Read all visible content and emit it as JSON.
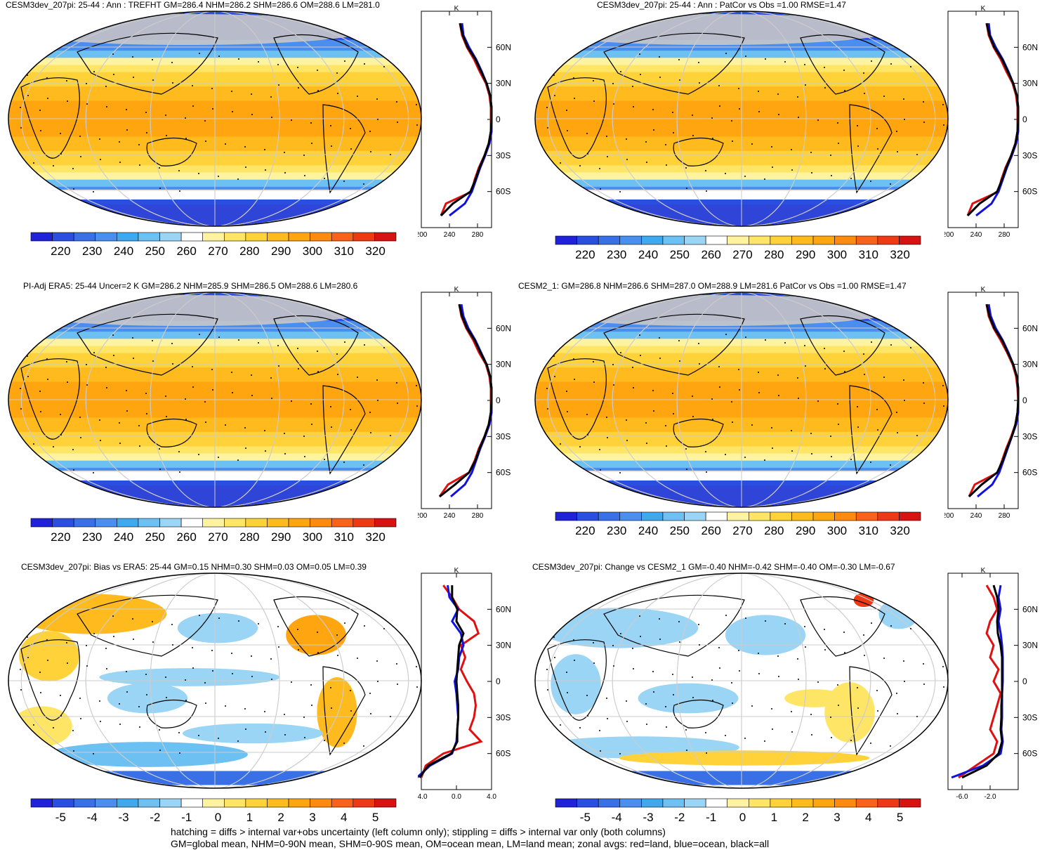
{
  "panels": [
    {
      "title": "CESM3dev_207pi: 25-44 : Ann : TREFHT GM=286.4 NHM=286.2 SHM=286.6 OM=288.6 LM=281.0",
      "field": "abs",
      "zonal_unit": "K",
      "zonal_xticks": [
        "200",
        "240",
        "280"
      ],
      "lat_labels": [
        "60N",
        "30N",
        "0",
        "30S",
        "60S"
      ],
      "colorbar_labels": [
        "220",
        "230",
        "240",
        "250",
        "260",
        "270",
        "280",
        "290",
        "300",
        "310",
        "320"
      ]
    },
    {
      "title": "CESM3dev_207pi: 25-44 : Ann : PatCor vs Obs =1.00 RMSE=1.47",
      "field": "abs",
      "zonal_unit": "K",
      "zonal_xticks": [
        "200",
        "240",
        "280"
      ],
      "lat_labels": [
        "60N",
        "30N",
        "0",
        "30S",
        "60S"
      ],
      "colorbar_labels": [
        "220",
        "230",
        "240",
        "250",
        "260",
        "270",
        "280",
        "290",
        "300",
        "310",
        "320"
      ]
    },
    {
      "title": "PI-Adj ERA5: 25-44 Uncer=2 K GM=286.2 NHM=285.9 SHM=286.5 OM=288.6 LM=280.6",
      "field": "abs",
      "zonal_unit": "K",
      "zonal_xticks": [
        "200",
        "240",
        "280"
      ],
      "lat_labels": [
        "60N",
        "30N",
        "0",
        "30S",
        "60S"
      ],
      "colorbar_labels": [
        "220",
        "230",
        "240",
        "250",
        "260",
        "270",
        "280",
        "290",
        "300",
        "310",
        "320"
      ]
    },
    {
      "title": "CESM2_1: GM=286.8 NHM=286.6 SHM=287.0 OM=288.9 LM=281.6 PatCor vs Obs =1.00 RMSE=1.47",
      "field": "abs",
      "zonal_unit": "K",
      "zonal_xticks": [
        "200",
        "240",
        "280"
      ],
      "lat_labels": [
        "60N",
        "30N",
        "0",
        "30S",
        "60S"
      ],
      "colorbar_labels": [
        "220",
        "230",
        "240",
        "250",
        "260",
        "270",
        "280",
        "290",
        "300",
        "310",
        "320"
      ]
    },
    {
      "title": "CESM3dev_207pi: Bias vs ERA5: 25-44 GM=0.15 NHM=0.30 SHM=0.03 OM=0.05 LM=0.39",
      "field": "diff",
      "zonal_unit": "K",
      "zonal_xticks": [
        "-4.0",
        "0.0",
        "4.0"
      ],
      "lat_labels": [
        "60N",
        "30N",
        "0",
        "30S",
        "60S"
      ],
      "colorbar_labels": [
        "-5",
        "-4",
        "-3",
        "-2",
        "-1",
        "0",
        "1",
        "2",
        "3",
        "4",
        "5"
      ]
    },
    {
      "title": "CESM3dev_207pi: Change vs CESM2_1 GM=-0.40 NHM=-0.42 SHM=-0.40 OM=-0.30 LM=-0.67",
      "field": "diff",
      "zonal_unit": "K",
      "zonal_xticks": [
        "-6.0",
        "-2.0"
      ],
      "lat_labels": [
        "60N",
        "30N",
        "0",
        "30S",
        "60S"
      ],
      "colorbar_labels": [
        "-5",
        "-4",
        "-3",
        "-2",
        "-1",
        "0",
        "1",
        "2",
        "3",
        "4",
        "5"
      ]
    }
  ],
  "colors": {
    "land_line": "#e01010",
    "ocean_line": "#1010e0",
    "all_line": "#000000",
    "colorbar": [
      "#1f22d9",
      "#2a4fe0",
      "#3a70e6",
      "#4a8ff0",
      "#3fa9f0",
      "#6cc0f2",
      "#9ad5f5",
      "#ffffff",
      "#fff3a0",
      "#ffe566",
      "#ffd23a",
      "#ffbb1e",
      "#ffa50f",
      "#ff8a10",
      "#f8621a",
      "#ee3a14",
      "#d61212"
    ]
  },
  "footer": {
    "line1": "hatching = diffs > internal var+obs uncertainty (left column only); stippling = diffs > internal var only (both columns)",
    "line2": "GM=global mean, NHM=0-90N mean, SHM=0-90S mean, OM=ocean mean, LM=land mean; zonal avgs: red=land, blue=ocean, black=all"
  },
  "chart_data": [
    {
      "type": "heatmap",
      "title": "CESM3dev_207pi: 25-44 : Ann : TREFHT GM=286.4 NHM=286.2 SHM=286.6 OM=288.6 LM=281.0",
      "colorbar": [
        220,
        230,
        240,
        250,
        260,
        270,
        280,
        290,
        300,
        310,
        320
      ],
      "zonal_xlim": [
        200,
        300
      ],
      "zonal_ticks": [
        200,
        240,
        280
      ],
      "lat_ticks": [
        "60N",
        "30N",
        "0",
        "30S",
        "60S"
      ],
      "zonal_avg": {
        "lat": [
          80,
          70,
          60,
          50,
          40,
          30,
          20,
          10,
          0,
          -10,
          -20,
          -30,
          -40,
          -50,
          -60,
          -70,
          -80
        ],
        "land": [
          255,
          258,
          265,
          275,
          283,
          292,
          297,
          299,
          299,
          299,
          296,
          290,
          282,
          276,
          272,
          235,
          228
        ],
        "ocean": [
          258,
          260,
          268,
          278,
          286,
          293,
          298,
          300,
          300,
          300,
          297,
          291,
          284,
          278,
          272,
          262,
          240
        ],
        "all": [
          255,
          259,
          266,
          277,
          285,
          293,
          298,
          300,
          300,
          299,
          296,
          290,
          283,
          277,
          270,
          245,
          228
        ]
      }
    },
    {
      "type": "heatmap",
      "title": "CESM3dev_207pi: 25-44 : Ann : PatCor vs Obs =1.00 RMSE=1.47",
      "colorbar": [
        220,
        230,
        240,
        250,
        260,
        270,
        280,
        290,
        300,
        310,
        320
      ],
      "zonal_xlim": [
        200,
        300
      ],
      "zonal_ticks": [
        200,
        240,
        280
      ],
      "lat_ticks": [
        "60N",
        "30N",
        "0",
        "30S",
        "60S"
      ],
      "zonal_avg": {
        "lat": [
          80,
          70,
          60,
          50,
          40,
          30,
          20,
          10,
          0,
          -10,
          -20,
          -30,
          -40,
          -50,
          -60,
          -70,
          -80
        ],
        "land": [
          255,
          258,
          265,
          275,
          283,
          292,
          297,
          299,
          299,
          299,
          296,
          290,
          282,
          276,
          272,
          235,
          228
        ],
        "ocean": [
          258,
          260,
          268,
          278,
          286,
          293,
          298,
          300,
          300,
          300,
          297,
          291,
          284,
          278,
          272,
          262,
          240
        ],
        "all": [
          255,
          259,
          266,
          277,
          285,
          293,
          298,
          300,
          300,
          299,
          296,
          290,
          283,
          277,
          270,
          245,
          228
        ]
      }
    },
    {
      "type": "heatmap",
      "title": "PI-Adj ERA5: 25-44 Uncer=2 K GM=286.2 NHM=285.9 SHM=286.5 OM=288.6 LM=280.6",
      "colorbar": [
        220,
        230,
        240,
        250,
        260,
        270,
        280,
        290,
        300,
        310,
        320
      ],
      "zonal_xlim": [
        200,
        300
      ],
      "zonal_ticks": [
        200,
        240,
        280
      ],
      "lat_ticks": [
        "60N",
        "30N",
        "0",
        "30S",
        "60S"
      ],
      "zonal_avg": {
        "lat": [
          80,
          70,
          60,
          50,
          40,
          30,
          20,
          10,
          0,
          -10,
          -20,
          -30,
          -40,
          -50,
          -60,
          -70,
          -80
        ],
        "land": [
          254,
          257,
          264,
          274,
          282,
          292,
          297,
          299,
          299,
          299,
          296,
          290,
          282,
          276,
          268,
          238,
          226
        ],
        "ocean": [
          257,
          260,
          267,
          277,
          285,
          293,
          298,
          300,
          300,
          300,
          297,
          291,
          284,
          278,
          272,
          262,
          242
        ],
        "all": [
          254,
          258,
          265,
          276,
          284,
          293,
          298,
          300,
          300,
          299,
          296,
          290,
          283,
          277,
          268,
          248,
          226
        ]
      }
    },
    {
      "type": "heatmap",
      "title": "CESM2_1: GM=286.8 NHM=286.6 SHM=287.0 OM=288.9 LM=281.6 PatCor vs Obs =1.00 RMSE=1.47",
      "colorbar": [
        220,
        230,
        240,
        250,
        260,
        270,
        280,
        290,
        300,
        310,
        320
      ],
      "zonal_xlim": [
        200,
        300
      ],
      "zonal_ticks": [
        200,
        240,
        280
      ],
      "lat_ticks": [
        "60N",
        "30N",
        "0",
        "30S",
        "60S"
      ],
      "zonal_avg": {
        "lat": [
          80,
          70,
          60,
          50,
          40,
          30,
          20,
          10,
          0,
          -10,
          -20,
          -30,
          -40,
          -50,
          -60,
          -70,
          -80
        ],
        "land": [
          255,
          258,
          265,
          275,
          284,
          292,
          297,
          299,
          300,
          299,
          296,
          290,
          283,
          277,
          271,
          238,
          230
        ],
        "ocean": [
          258,
          261,
          268,
          278,
          286,
          293,
          298,
          300,
          300,
          300,
          297,
          291,
          285,
          279,
          273,
          263,
          242
        ],
        "all": [
          255,
          259,
          266,
          277,
          285,
          293,
          298,
          300,
          300,
          299,
          296,
          291,
          284,
          278,
          270,
          248,
          230
        ]
      }
    },
    {
      "type": "heatmap",
      "title": "CESM3dev_207pi: Bias vs ERA5: 25-44 GM=0.15 NHM=0.30 SHM=0.03 OM=0.05 LM=0.39",
      "colorbar": [
        -5,
        -4,
        -3,
        -2,
        -1,
        0,
        1,
        2,
        3,
        4,
        5
      ],
      "zonal_xlim": [
        -4,
        4
      ],
      "zonal_ticks": [
        -4,
        0,
        4
      ],
      "lat_ticks": [
        "60N",
        "30N",
        "0",
        "30S",
        "60S"
      ],
      "zonal_avg": {
        "lat": [
          80,
          70,
          60,
          50,
          40,
          30,
          20,
          10,
          0,
          -10,
          -20,
          -30,
          -40,
          -50,
          -60,
          -70,
          -80
        ],
        "land": [
          -1.5,
          -0.5,
          0.3,
          2.0,
          2.5,
          0.5,
          1.0,
          0.5,
          1.2,
          2.0,
          2.2,
          2.0,
          1.5,
          2.8,
          -1.5,
          -3.5,
          -4.0
        ],
        "ocean": [
          -1.0,
          -0.8,
          0.2,
          -0.5,
          0.5,
          0.8,
          0.3,
          0.2,
          -0.2,
          0.0,
          0.1,
          0.2,
          0.1,
          0.0,
          -0.5,
          -3.0,
          -4.5
        ],
        "all": [
          -0.5,
          -0.5,
          0.1,
          0.0,
          0.8,
          0.3,
          0.2,
          0.1,
          0.0,
          0.1,
          0.2,
          0.2,
          0.1,
          0.1,
          -0.6,
          -3.2,
          -4.2
        ]
      }
    },
    {
      "type": "heatmap",
      "title": "CESM3dev_207pi: Change vs CESM2_1 GM=-0.40 NHM=-0.42 SHM=-0.40 OM=-0.30 LM=-0.67",
      "colorbar": [
        -5,
        -4,
        -3,
        -2,
        -1,
        0,
        1,
        2,
        3,
        4,
        5
      ],
      "zonal_xlim": [
        -8,
        2
      ],
      "zonal_ticks": [
        -6,
        -2
      ],
      "lat_ticks": [
        "60N",
        "30N",
        "0",
        "30S",
        "60S"
      ],
      "zonal_avg": {
        "lat": [
          80,
          70,
          60,
          50,
          40,
          30,
          20,
          10,
          0,
          -10,
          -20,
          -30,
          -40,
          -50,
          -60,
          -70,
          -80
        ],
        "land": [
          -2.5,
          -1.5,
          -1.0,
          -2.0,
          -2.5,
          -1.5,
          -2.0,
          -0.8,
          -1.5,
          -0.5,
          -1.0,
          -1.5,
          -2.0,
          -1.0,
          -1.5,
          -4.0,
          -6.5
        ],
        "ocean": [
          -0.5,
          -0.8,
          -0.5,
          -0.8,
          -0.5,
          -0.3,
          -0.2,
          -0.2,
          -0.2,
          -0.3,
          -0.3,
          -0.3,
          -0.4,
          -0.2,
          -0.5,
          -3.0,
          -7.5
        ],
        "all": [
          -1.5,
          -1.0,
          -0.8,
          -1.0,
          -0.9,
          -0.5,
          -0.3,
          -0.3,
          -0.3,
          -0.3,
          -0.4,
          -0.4,
          -0.5,
          -0.3,
          -0.8,
          -2.5,
          -6.0
        ]
      }
    }
  ]
}
